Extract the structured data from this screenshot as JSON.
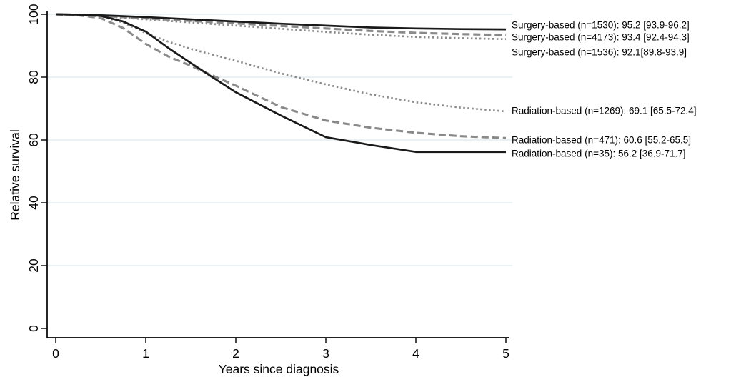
{
  "figure": {
    "background": "#ffffff",
    "text_color": "#000000"
  },
  "chart_data": {
    "type": "line",
    "title": "",
    "xlabel": "Years since diagnosis",
    "ylabel": "Relative survival",
    "xlim": [
      0,
      5
    ],
    "ylim": [
      0,
      100
    ],
    "x_ticks": [
      "0",
      "1",
      "2",
      "3",
      "4",
      "5"
    ],
    "y_ticks": [
      "0",
      "20",
      "40",
      "60",
      "80",
      "100"
    ],
    "grid": "horizontal, at 20/40/60/80/100, no gridline at 0",
    "gridline_color": "#eaf1f3",
    "axis_color": "#000000",
    "legend_position": "labels at right end of curves",
    "series": [
      {
        "name": "surgery-1530",
        "label": "Surgery-based (n=1530): 95.2 [93.9-96.2]",
        "line_style": "solid",
        "color": "#1a1a1a",
        "label_y": 96.6,
        "x": [
          0,
          0.25,
          0.5,
          0.75,
          1,
          1.5,
          2,
          2.5,
          3,
          3.5,
          4,
          4.5,
          5
        ],
        "y": [
          100,
          99.9,
          99.7,
          99.4,
          99.1,
          98.4,
          97.7,
          97.0,
          96.4,
          95.8,
          95.5,
          95.3,
          95.2
        ]
      },
      {
        "name": "surgery-4173",
        "label": "Surgery-based (n=4173): 93.4 [92.4-94.3]",
        "line_style": "dashed",
        "color": "#8a8a8a",
        "label_y": 92.7,
        "x": [
          0,
          0.25,
          0.5,
          0.75,
          1,
          1.5,
          2,
          2.5,
          3,
          3.5,
          4,
          4.5,
          5
        ],
        "y": [
          100,
          99.8,
          99.5,
          99.1,
          98.7,
          97.9,
          97.1,
          96.3,
          95.5,
          94.7,
          94.1,
          93.7,
          93.4
        ]
      },
      {
        "name": "surgery-1536",
        "label": "Surgery-based (n=1536): 92.1[89.8-93.9]",
        "line_style": "dotted",
        "color": "#8a8a8a",
        "label_y": 88.0,
        "x": [
          0,
          0.25,
          0.5,
          0.75,
          1,
          1.5,
          2,
          2.5,
          3,
          3.5,
          4,
          4.5,
          5
        ],
        "y": [
          100,
          99.8,
          99.4,
          98.9,
          98.4,
          97.4,
          96.4,
          95.4,
          94.4,
          93.5,
          92.8,
          92.4,
          92.1
        ]
      },
      {
        "name": "radiation-1269",
        "label": "Radiation-based (n=1269): 69.1 [65.5-72.4]",
        "line_style": "dotted",
        "color": "#8a8a8a",
        "label_y": 69.3,
        "x": [
          0,
          0.25,
          0.5,
          0.75,
          1,
          1.25,
          1.5,
          2,
          2.5,
          3,
          3.5,
          4,
          4.5,
          5
        ],
        "y": [
          100,
          99.8,
          99.3,
          97.4,
          94.0,
          91.3,
          89.0,
          85.2,
          81.2,
          77.7,
          74.5,
          72.0,
          70.3,
          69.1
        ]
      },
      {
        "name": "radiation-471",
        "label": "Radiation-based (n=471): 60.6 [55.2-65.5]",
        "line_style": "dashed",
        "color": "#8a8a8a",
        "label_y": 60.0,
        "x": [
          0,
          0.25,
          0.5,
          0.75,
          1,
          1.25,
          1.5,
          1.75,
          2,
          2.5,
          3,
          3.5,
          4,
          4.5,
          5
        ],
        "y": [
          100,
          99.7,
          98.8,
          95.6,
          90.6,
          86.6,
          83.6,
          80.4,
          77.3,
          70.5,
          66.2,
          63.9,
          62.3,
          61.2,
          60.6
        ]
      },
      {
        "name": "radiation-35",
        "label": "Radiation-based (n=35): 56.2 [36.9-71.7]",
        "line_style": "solid",
        "color": "#1a1a1a",
        "label_y": 55.7,
        "x": [
          0,
          0.25,
          0.5,
          0.75,
          1,
          1.25,
          1.5,
          1.75,
          2,
          2.5,
          3,
          3.5,
          4,
          4.5,
          5
        ],
        "y": [
          100,
          99.9,
          99.5,
          97.7,
          94.5,
          89.3,
          84.5,
          79.8,
          75.2,
          67.8,
          60.9,
          58.4,
          56.2,
          56.2,
          56.2
        ]
      }
    ]
  }
}
